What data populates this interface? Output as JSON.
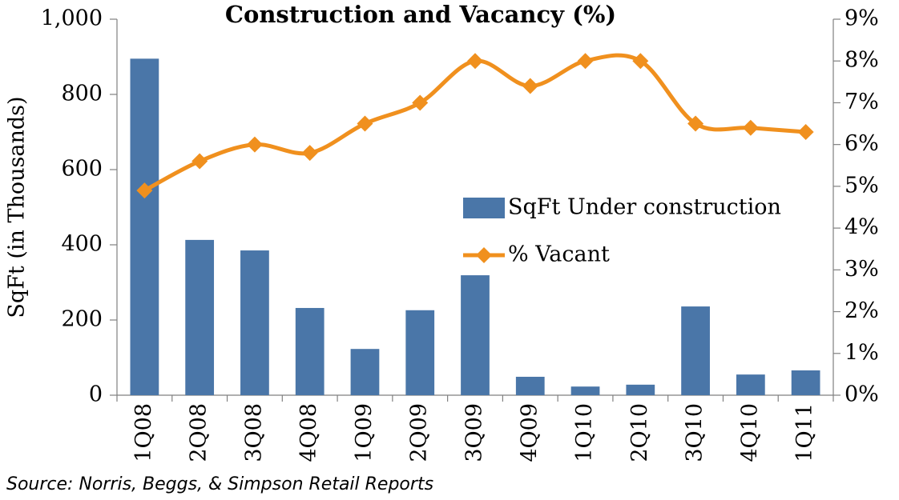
{
  "chart_data": {
    "type": "bar",
    "title": "Construction and Vacancy (%)",
    "y_label": "SqFt  (in Thousands)",
    "source": "Source:  Norris, Beggs, & Simpson Retail Reports",
    "categories": [
      "1Q08",
      "2Q08",
      "3Q08",
      "4Q08",
      "1Q09",
      "2Q09",
      "3Q09",
      "4Q09",
      "1Q10",
      "2Q10",
      "3Q10",
      "4Q10",
      "1Q11"
    ],
    "series": [
      {
        "name": "SqFt Under construction",
        "type": "bar",
        "color": "#4a76a8",
        "values": [
          895,
          413,
          385,
          232,
          123,
          226,
          319,
          49,
          23,
          28,
          236,
          55,
          66
        ]
      },
      {
        "name": "% Vacant",
        "type": "line",
        "axis": "y2",
        "color": "#f0901e",
        "values": [
          4.9,
          5.6,
          6.0,
          5.8,
          6.5,
          7.0,
          8.0,
          7.4,
          8.0,
          8.0,
          6.5,
          6.4,
          6.3
        ]
      }
    ],
    "ylim": [
      0,
      1000
    ],
    "yticks": [
      0,
      200,
      400,
      600,
      800,
      {
        "value": 1000,
        "label": "1,000"
      }
    ],
    "y2lim": [
      0,
      9
    ],
    "y2ticks": [
      {
        "value": 0,
        "label": "0%"
      },
      {
        "value": 1,
        "label": "1%"
      },
      {
        "value": 2,
        "label": "2%"
      },
      {
        "value": 3,
        "label": "3%"
      },
      {
        "value": 4,
        "label": "4%"
      },
      {
        "value": 5,
        "label": "5%"
      },
      {
        "value": 6,
        "label": "6%"
      },
      {
        "value": 7,
        "label": "7%"
      },
      {
        "value": 8,
        "label": "8%"
      },
      {
        "value": 9,
        "label": "9%"
      }
    ],
    "grid": false
  }
}
